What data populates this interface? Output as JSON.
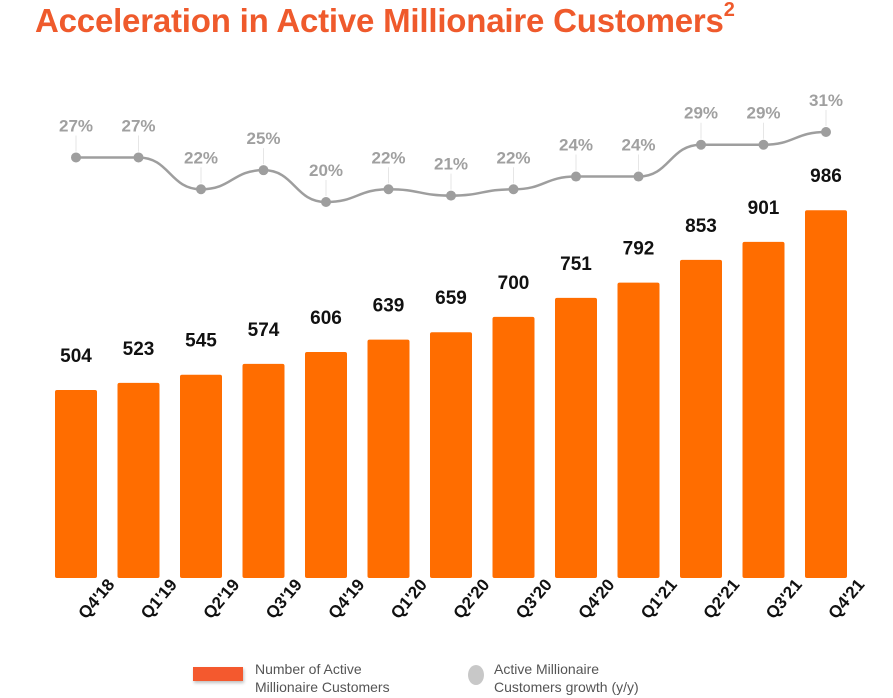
{
  "title": "Acceleration in Active Millionaire Customers",
  "title_superscript": "2",
  "colors": {
    "bar": "#ff6d00",
    "line": "#9e9e9e",
    "title": "#ef5a2c",
    "legend_bar": "#f4592e",
    "legend_dot": "#c8c8c8"
  },
  "chart_data": {
    "type": "bar",
    "title": "Acceleration in Active Millionaire Customers",
    "categories": [
      "Q4'18",
      "Q1'19",
      "Q2'19",
      "Q3'19",
      "Q4'19",
      "Q1'20",
      "Q2'20",
      "Q3'20",
      "Q4'20",
      "Q1'21",
      "Q2'21",
      "Q3'21",
      "Q4'21"
    ],
    "series": [
      {
        "name": "Number of Active Millionaire Customers",
        "type": "bar",
        "values": [
          504,
          523,
          545,
          574,
          606,
          639,
          659,
          700,
          751,
          792,
          853,
          901,
          986
        ]
      },
      {
        "name": "Active Millionaire Customers growth (y/y)",
        "type": "line",
        "unit": "%",
        "values": [
          27,
          27,
          22,
          25,
          20,
          22,
          21,
          22,
          24,
          24,
          29,
          29,
          31
        ]
      }
    ],
    "xlabel": "",
    "ylabel": "",
    "ylim": [
      0,
      1000
    ],
    "grid": false,
    "legend": "bottom"
  },
  "legend": [
    {
      "line1": "Number of Active",
      "line2": "Millionaire Customers"
    },
    {
      "line1": "Active Millionaire",
      "line2": "Customers growth (y/y)"
    }
  ]
}
